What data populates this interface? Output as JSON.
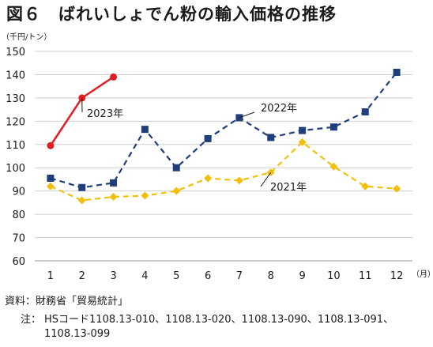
{
  "title": "図６　ばれいしょでん粉の輸入価格の推移",
  "chart_data": {
    "type": "line",
    "y_unit": "（千円/トン）",
    "x_unit": "（月）",
    "categories": [
      "1",
      "2",
      "3",
      "4",
      "5",
      "6",
      "7",
      "8",
      "9",
      "10",
      "11",
      "12"
    ],
    "ylim": [
      60,
      150
    ],
    "yticks": [
      60,
      70,
      80,
      90,
      100,
      110,
      120,
      130,
      140,
      150
    ],
    "grid": true,
    "series": [
      {
        "name": "2023年",
        "color": "#e02020",
        "marker": "circle",
        "dash": "solid",
        "values": [
          109.5,
          130,
          139,
          null,
          null,
          null,
          null,
          null,
          null,
          null,
          null,
          null
        ]
      },
      {
        "name": "2022年",
        "color": "#1f3e7c",
        "marker": "square",
        "dash": "dashed",
        "values": [
          95.5,
          91.5,
          93.5,
          116.5,
          100,
          112.5,
          121.5,
          113,
          116,
          117.5,
          124,
          141
        ]
      },
      {
        "name": "2021年",
        "color": "#f2c00c",
        "marker": "diamond",
        "dash": "dashed",
        "values": [
          92,
          86,
          87.5,
          88,
          90,
          95.5,
          94.5,
          98,
          111,
          100.5,
          92,
          91
        ]
      }
    ]
  },
  "source": {
    "line1": "資料：財務省「貿易統計」",
    "note_label": "注：",
    "note_line1": "HSコード1108.13-010、1108.13-020、1108.13-090、1108.13-091、",
    "note_line2": "1108.13-099"
  }
}
